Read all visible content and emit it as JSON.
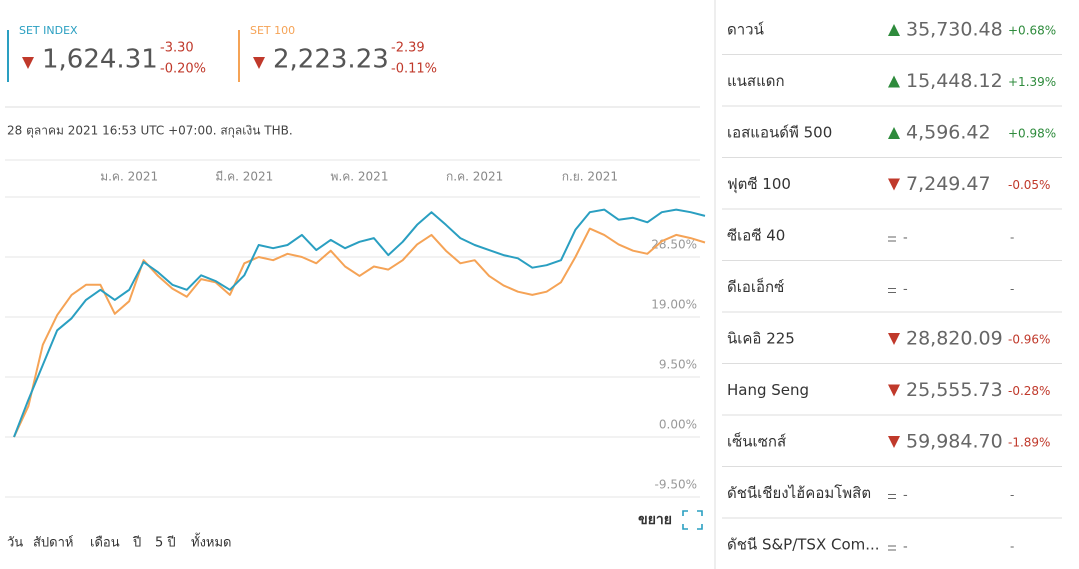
{
  "quotes": [
    {
      "name": "SET INDEX",
      "value": "1,624.31",
      "change": "-3.30",
      "change_pct": "-0.20%",
      "color": "#2a9fc1"
    },
    {
      "name": "SET 100",
      "value": "2,223.23",
      "change": "-2.39",
      "change_pct": "-0.11%",
      "color": "#f5a356"
    }
  ],
  "timestamp": "28 ตุลาคม 2021 16:53 UTC +07:00. สกุลเงิน THB.",
  "chart_data": {
    "type": "line",
    "categories": [
      null,
      null,
      null,
      null,
      null,
      null,
      null,
      null,
      "ม.ค. 2021",
      null,
      null,
      null,
      null,
      null,
      null,
      null,
      "มี.ค. 2021",
      null,
      null,
      null,
      null,
      null,
      null,
      null,
      "พ.ค. 2021",
      null,
      null,
      null,
      null,
      null,
      null,
      null,
      "ก.ค. 2021",
      null,
      null,
      null,
      null,
      null,
      null,
      null,
      "ก.ย. 2021",
      null,
      null,
      null,
      null,
      null,
      null,
      null,
      null
    ],
    "series": [
      {
        "name": "SET INDEX",
        "color": "#2a9fc1",
        "values": [
          0,
          5.9,
          11.4,
          16.9,
          18.8,
          21.7,
          23.3,
          21.7,
          23.3,
          27.7,
          26.1,
          24.1,
          23.3,
          25.6,
          24.7,
          23.3,
          25.6,
          30.4,
          29.9,
          30.4,
          32.0,
          29.6,
          31.2,
          29.9,
          30.9,
          31.5,
          28.8,
          30.9,
          33.6,
          35.6,
          33.6,
          31.5,
          30.4,
          29.6,
          28.8,
          28.3,
          26.8,
          27.2,
          28.0,
          32.8,
          35.6,
          36.0,
          34.4,
          34.7,
          34.0,
          35.6,
          36.0,
          35.6,
          35.0
        ]
      },
      {
        "name": "SET 100",
        "color": "#f5a356",
        "values": [
          0,
          4.9,
          14.6,
          19.3,
          22.5,
          24.1,
          24.1,
          19.5,
          21.5,
          28.0,
          25.5,
          23.5,
          22.2,
          25.0,
          24.5,
          22.5,
          27.5,
          28.5,
          28.0,
          29.0,
          28.5,
          27.5,
          29.5,
          27.0,
          25.5,
          27.0,
          26.5,
          28.0,
          30.5,
          32.0,
          29.5,
          27.5,
          28.0,
          25.5,
          24.0,
          23.0,
          22.5,
          23.0,
          24.5,
          28.5,
          33.0,
          32.0,
          30.5,
          29.5,
          29.0,
          31.0,
          32.0,
          31.5,
          30.8
        ]
      }
    ],
    "ylim": [
      -9.5,
      38
    ],
    "yticks": [
      {
        "value": -9.5,
        "label": "-9.50%"
      },
      {
        "value": 0,
        "label": "0.00%"
      },
      {
        "value": 9.5,
        "label": "9.50%"
      },
      {
        "value": 19,
        "label": "19.00%"
      },
      {
        "value": 28.5,
        "label": "28.50%"
      }
    ],
    "grid": true
  },
  "expand_label": "ขยาย",
  "ranges": [
    "วัน",
    "สัปดาห์",
    "เดือน",
    "ปี",
    "5 ปี",
    "ทั้งหมด"
  ],
  "markets": [
    {
      "name": "ดาวน์",
      "direction": "up",
      "value": "35,730.48",
      "change": "+0.68%"
    },
    {
      "name": "แนสแดก",
      "direction": "up",
      "value": "15,448.12",
      "change": "+1.39%"
    },
    {
      "name": "เอสแอนด์พี 500",
      "direction": "up",
      "value": "4,596.42",
      "change": "+0.98%"
    },
    {
      "name": "ฟุตซี 100",
      "direction": "down",
      "value": "7,249.47",
      "change": "-0.05%"
    },
    {
      "name": "ซีเอซี 40",
      "direction": "flat",
      "value": "-",
      "change": "-"
    },
    {
      "name": "ดีเอเอ็กซ์",
      "direction": "flat",
      "value": "-",
      "change": "-"
    },
    {
      "name": "นิเคอิ 225",
      "direction": "down",
      "value": "28,820.09",
      "change": "-0.96%"
    },
    {
      "name": "Hang Seng",
      "direction": "down",
      "value": "25,555.73",
      "change": "-0.28%"
    },
    {
      "name": "เซ็นเซกส์",
      "direction": "down",
      "value": "59,984.70",
      "change": "-1.89%"
    },
    {
      "name": "ดัชนีเชียงไฮ้คอมโพสิต",
      "direction": "flat",
      "value": "-",
      "change": "-"
    },
    {
      "name": "ดัชนี S&P/TSX Com...",
      "direction": "flat",
      "value": "-",
      "change": "-"
    }
  ]
}
